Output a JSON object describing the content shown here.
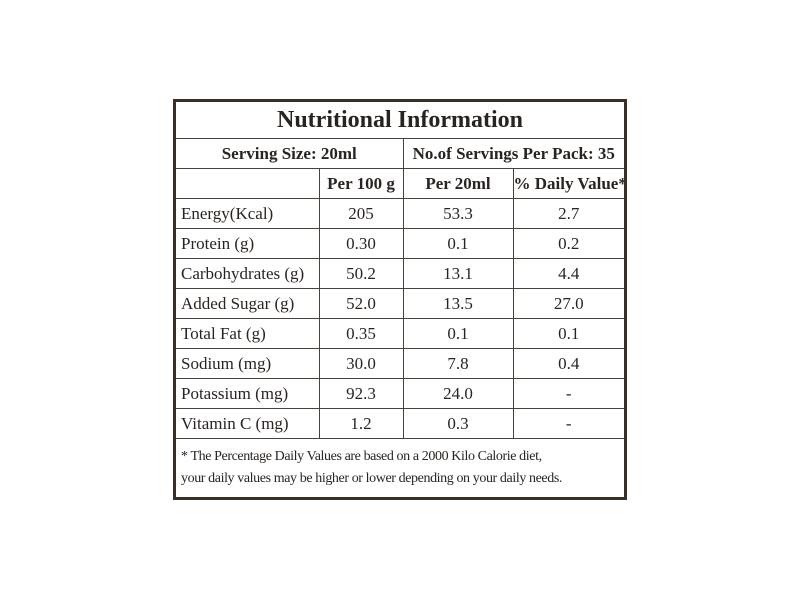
{
  "title": "Nutritional Information",
  "serving_size": "Serving Size: 20ml",
  "servings_per_pack": "No.of Servings Per Pack: 35",
  "table": {
    "header": [
      "Per 100 g",
      "Per 20ml",
      "% Daily Value*"
    ],
    "rows": [
      [
        "Energy(Kcal)",
        "205",
        "53.3",
        "2.7"
      ],
      [
        "Protein (g)",
        "0.30",
        "0.1",
        "0.2"
      ],
      [
        "Carbohydrates (g)",
        "50.2",
        "13.1",
        "4.4"
      ],
      [
        "Added Sugar (g)",
        "52.0",
        "13.5",
        "27.0"
      ],
      [
        "Total Fat (g)",
        "0.35",
        "0.1",
        "0.1"
      ],
      [
        "Sodium (mg)",
        "30.0",
        "7.8",
        "0.4"
      ],
      [
        "Potassium (mg)",
        "92.3",
        "24.0",
        "-"
      ],
      [
        "Vitamin C (mg)",
        "1.2",
        "0.3",
        "-"
      ]
    ]
  },
  "footnote": [
    "* The Percentage Daily Values are based on a 2000 Kilo Calorie diet,",
    "your daily values may be higher or lower depending on your daily needs."
  ]
}
